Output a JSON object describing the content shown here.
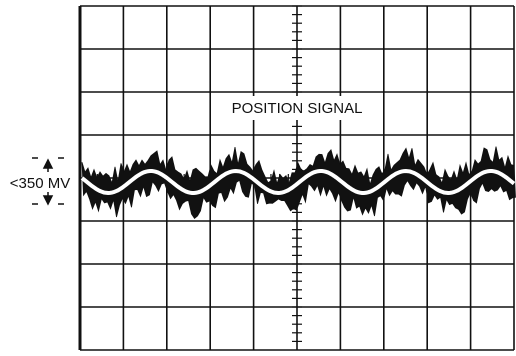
{
  "trace": {
    "label": "POSITION SIGNAL",
    "scale": "<350 MV"
  }
}
